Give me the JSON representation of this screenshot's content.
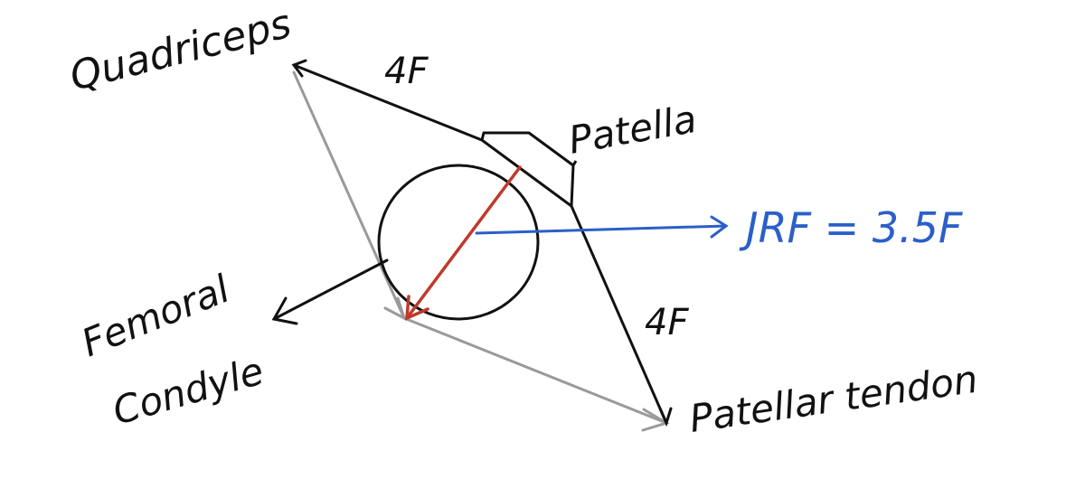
{
  "labels": {
    "quadriceps": "Quadriceps",
    "force_top": "4F",
    "patella": "Patella",
    "jrf": "JRF = 3.5F",
    "force_bottom": "4F",
    "femoral_line1": "Femoral",
    "femoral_line2": "Condyle",
    "patellar_tendon": "Patellar tendon"
  },
  "colors": {
    "ink": "#111111",
    "construction": "#9a9a9a",
    "resultant": "#c0392b",
    "jrf_arrow": "#2b5fc9"
  }
}
